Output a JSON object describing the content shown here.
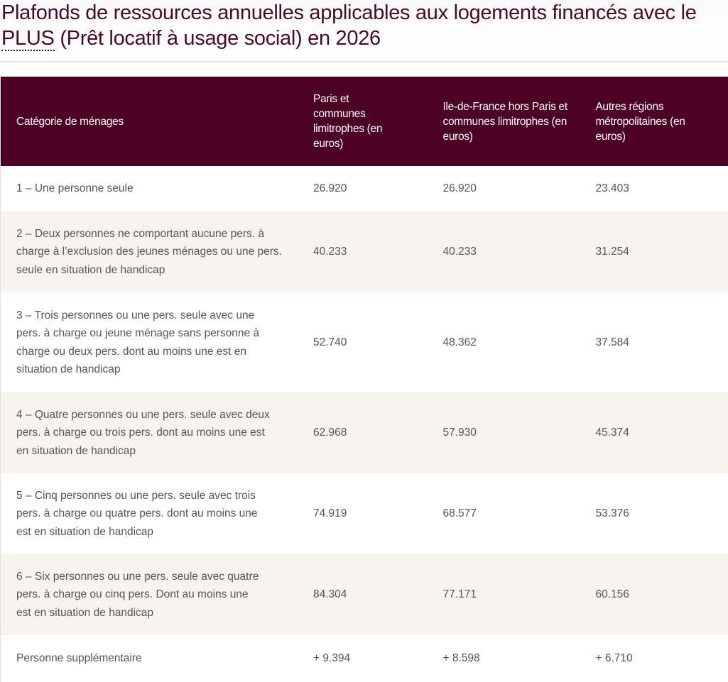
{
  "title": {
    "before": "Plafonds de ressources annuelles applicables aux logements financés avec le ",
    "abbr": "PLUS",
    "after": " (Prêt locatif à usage social) en 2026"
  },
  "table": {
    "headers": [
      "Catégorie de ménages",
      "Paris et communes limitrophes (en euros)",
      "Ile-de-France hors Paris et communes limitrophes (en euros)",
      "Autres régions métropolitaines (en euros)"
    ],
    "rows": [
      [
        "1 – Une personne seule",
        "26.920",
        "26.920",
        "23.403"
      ],
      [
        "2 – Deux personnes ne comportant aucune pers. à charge à l’exclusion des jeunes ménages ou une pers. seule en situation de handicap",
        "40.233",
        "40.233",
        "31.254"
      ],
      [
        "3 – Trois personnes ou une pers. seule avec une pers. à charge ou jeune ménage sans personne à charge ou deux pers. dont au moins une est en situation de handicap",
        "52.740",
        "48.362",
        "37.584"
      ],
      [
        "4 – Quatre personnes ou une pers. seule avec deux pers. à charge ou trois pers. dont au moins une est en situation de handicap",
        "62.968",
        "57.930",
        "45.374"
      ],
      [
        "5 – Cinq personnes ou une pers. seule avec trois pers. à charge ou quatre pers. dont au moins une est en situation de handicap",
        "74.919",
        "68.577",
        "53.376"
      ],
      [
        "6 – Six personnes ou une pers. seule avec quatre pers. à charge ou cinq pers. Dont au moins une est en situation de handicap",
        "84.304",
        "77.171",
        "60.156"
      ],
      [
        "Personne supplémentaire",
        "+ 9.394",
        "+ 8.598",
        "+ 6.710"
      ]
    ]
  }
}
